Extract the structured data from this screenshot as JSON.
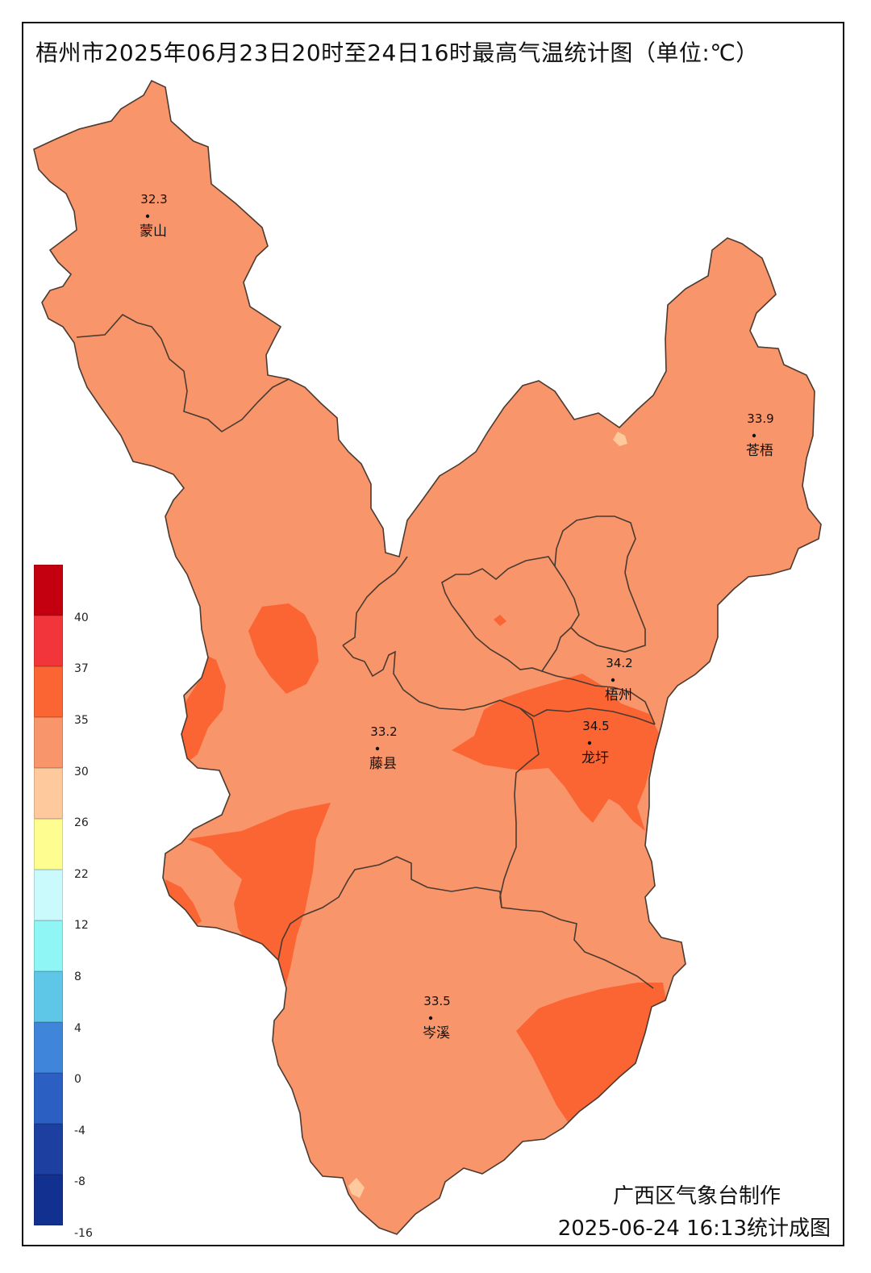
{
  "title": "梧州市2025年06月23日20时至24日16时最高气温统计图（单位:℃）",
  "legend": {
    "bins": [
      {
        "color": "#c40010"
      },
      {
        "color": "#f2353a"
      },
      {
        "color": "#fb6433"
      },
      {
        "color": "#f8956a"
      },
      {
        "color": "#fdc99d"
      },
      {
        "color": "#fdfd90"
      },
      {
        "color": "#cbfafc"
      },
      {
        "color": "#8ff5f5"
      },
      {
        "color": "#5ec6e6"
      },
      {
        "color": "#3f86da"
      },
      {
        "color": "#2b5fc2"
      },
      {
        "color": "#1d3fa0"
      },
      {
        "color": "#12308f"
      }
    ],
    "labels": [
      "40",
      "37",
      "35",
      "30",
      "26",
      "22",
      "12",
      "8",
      "4",
      "0",
      "-4",
      "-8",
      "-16"
    ]
  },
  "stations": [
    {
      "name": "蒙山",
      "value": "32.3"
    },
    {
      "name": "苍梧",
      "value": "33.9"
    },
    {
      "name": "梧州",
      "value": "34.2"
    },
    {
      "name": "藤县",
      "value": "33.2"
    },
    {
      "name": "龙圩",
      "value": "34.5"
    },
    {
      "name": "岑溪",
      "value": "33.5"
    }
  ],
  "colors": {
    "base_fill": "#f8956a",
    "hot_fill": "#fb6433",
    "cool_fill": "#fdc99d",
    "border": "#4a3a30"
  },
  "credit": "广西区气象台制作",
  "credit_time": "2025-06-24 16:13统计成图"
}
